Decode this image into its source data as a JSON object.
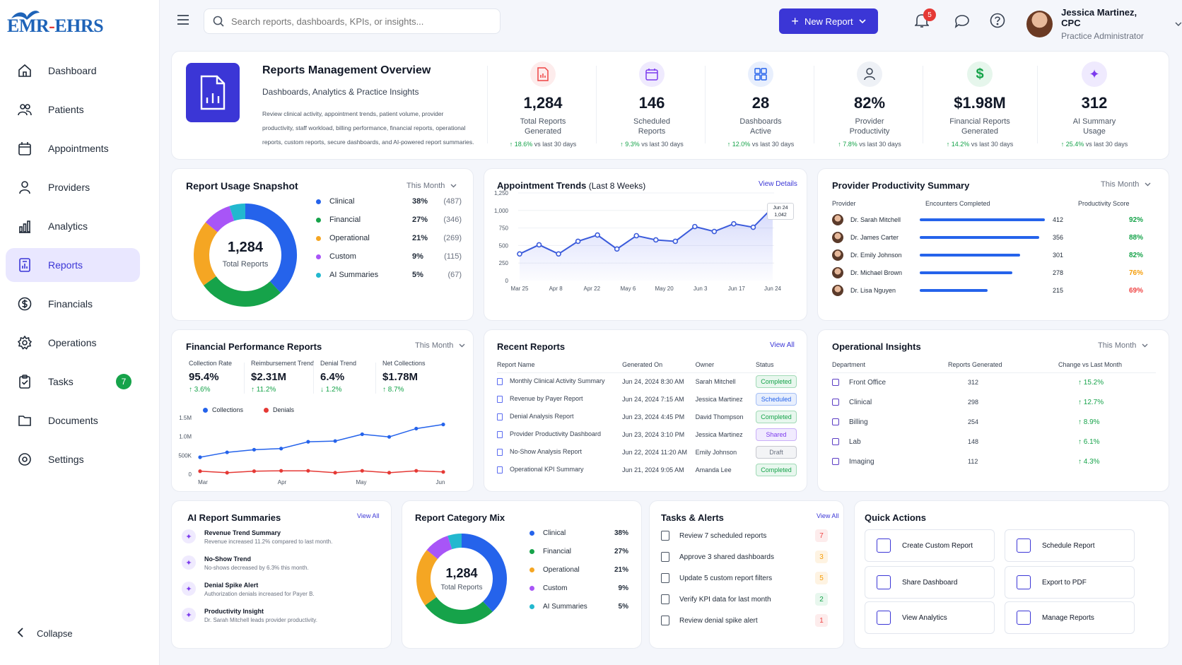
{
  "brand": {
    "name_left": "EMR",
    "name_dash": "-",
    "name_right": "EHRS"
  },
  "sidebar": {
    "items": [
      {
        "label": "Dashboard"
      },
      {
        "label": "Patients"
      },
      {
        "label": "Appointments"
      },
      {
        "label": "Providers"
      },
      {
        "label": "Analytics"
      },
      {
        "label": "Reports"
      },
      {
        "label": "Financials"
      },
      {
        "label": "Operations"
      },
      {
        "label": "Tasks",
        "badge": "7"
      },
      {
        "label": "Documents"
      },
      {
        "label": "Settings"
      }
    ],
    "collapse_label": "Collapse"
  },
  "topbar": {
    "search_placeholder": "Search reports, dashboards, KPIs, or insights...",
    "new_report_label": "New Report",
    "notification_count": "5",
    "user_name": "Jessica Martinez, CPC",
    "user_role": "Practice Administrator"
  },
  "overview": {
    "title": "Reports Management Overview",
    "subtitle": "Dashboards, Analytics & Practice Insights",
    "desc_lines": [
      "Review clinical activity, appointment trends, patient volume, provider",
      "productivity, staff workload, billing performance, financial reports, operational",
      "reports, custom reports, secure dashboards, and AI-powered report summaries."
    ],
    "kpis": [
      {
        "value": "1,284",
        "label": "Total Reports\nGenerated",
        "change": "↑ 18.6%",
        "suffix": " vs last 30 days",
        "color": "#ef4444",
        "bg": "#fdecec"
      },
      {
        "value": "146",
        "label": "Scheduled\nReports",
        "change": "↑ 9.3%",
        "suffix": " vs last 30 days",
        "color": "#7c3aed",
        "bg": "#efeafe"
      },
      {
        "value": "28",
        "label": "Dashboards\nActive",
        "change": "↑ 12.0%",
        "suffix": " vs last 30 days",
        "color": "#2563eb",
        "bg": "#e8effd"
      },
      {
        "value": "82%",
        "label": "Provider\nProductivity",
        "change": "↑ 7.8%",
        "suffix": " vs last 30 days",
        "color": "#374151",
        "bg": "#eef1f6"
      },
      {
        "value": "$1.98M",
        "label": "Financial Reports\nGenerated",
        "change": "↑ 14.2%",
        "suffix": " vs last 30 days",
        "color": "#16a34a",
        "bg": "#e6f6ec"
      },
      {
        "value": "312",
        "label": "AI Summary\nUsage",
        "change": "↑ 25.4%",
        "suffix": " vs last 30 days",
        "color": "#7c3aed",
        "bg": "#efeafe"
      }
    ]
  },
  "usage_snapshot": {
    "title": "Report Usage Snapshot",
    "period": "This Month",
    "center_value": "1,284",
    "center_label": "Total Reports",
    "items": [
      {
        "name": "Clinical",
        "pct": "38%",
        "count": "(487)",
        "color": "#2563eb"
      },
      {
        "name": "Financial",
        "pct": "27%",
        "count": "(346)",
        "color": "#16a34a"
      },
      {
        "name": "Operational",
        "pct": "21%",
        "count": "(269)",
        "color": "#f5a623"
      },
      {
        "name": "Custom",
        "pct": "9%",
        "count": "(115)",
        "color": "#a855f7"
      },
      {
        "name": "AI Summaries",
        "pct": "5%",
        "count": "(67)",
        "color": "#22b8cf"
      }
    ]
  },
  "appointment_trends": {
    "title": "Appointment Trends",
    "title_suffix": " (Last 8 Weeks)",
    "view_label": "View Details",
    "tooltip_date": "Jun 24",
    "tooltip_value": "1,042",
    "y_ticks": [
      "1,250",
      "1,000",
      "750",
      "500",
      "250",
      "0"
    ],
    "x_ticks": [
      "Mar 25",
      "Apr 8",
      "Apr 22",
      "May 6",
      "May 20",
      "Jun 3",
      "Jun 17",
      "Jun 24"
    ]
  },
  "provider_productivity": {
    "title": "Provider Productivity Summary",
    "period": "This Month",
    "headers": [
      "Provider",
      "Encounters Completed",
      "Productivity Score"
    ],
    "rows": [
      {
        "name": "Dr. Sarah Mitchell",
        "encounters": "412",
        "score": "92%",
        "fill": 0.92,
        "score_color": "#16a34a"
      },
      {
        "name": "Dr. James Carter",
        "encounters": "356",
        "score": "88%",
        "fill": 0.88,
        "score_color": "#16a34a"
      },
      {
        "name": "Dr. Emily Johnson",
        "encounters": "301",
        "score": "82%",
        "fill": 0.74,
        "score_color": "#16a34a"
      },
      {
        "name": "Dr. Michael Brown",
        "encounters": "278",
        "score": "76%",
        "fill": 0.68,
        "score_color": "#f59e0b"
      },
      {
        "name": "Dr. Lisa Nguyen",
        "encounters": "215",
        "score": "69%",
        "fill": 0.5,
        "score_color": "#ef4444"
      }
    ]
  },
  "financial_performance": {
    "title": "Financial Performance Reports",
    "period": "This Month",
    "metrics": [
      {
        "label": "Collection Rate",
        "value": "95.4%",
        "change": "↑ 3.6%",
        "color": "#16a34a"
      },
      {
        "label": "Reimbursement Trend",
        "value": "$2.31M",
        "change": "↑ 11.2%",
        "color": "#16a34a"
      },
      {
        "label": "Denial Trend",
        "value": "6.4%",
        "change": "↓ 1.2%",
        "color": "#16a34a"
      },
      {
        "label": "Net Collections",
        "value": "$1.78M",
        "change": "↑ 8.7%",
        "color": "#16a34a"
      }
    ],
    "legend": [
      {
        "name": "Collections",
        "color": "#2563eb"
      },
      {
        "name": "Denials",
        "color": "#e53935"
      }
    ],
    "y_ticks": [
      "1.5M",
      "1.0M",
      "500K",
      "0"
    ],
    "x_ticks": [
      "Mar",
      "Apr",
      "May",
      "Jun"
    ]
  },
  "recent_reports": {
    "title": "Recent Reports",
    "view_label": "View All",
    "headers": [
      "Report Name",
      "Generated On",
      "Owner",
      "Status"
    ],
    "rows": [
      {
        "name": "Monthly Clinical Activity Summary",
        "date": "Jun 24, 2024 8:30 AM",
        "owner": "Sarah Mitchell",
        "status": "Completed",
        "sc": "#16a34a",
        "sb": "#e8f7ee"
      },
      {
        "name": "Revenue by Payer Report",
        "date": "Jun 24, 2024 7:15 AM",
        "owner": "Jessica Martinez",
        "status": "Scheduled",
        "sc": "#2563eb",
        "sb": "#e8effd"
      },
      {
        "name": "Denial Analysis Report",
        "date": "Jun 23, 2024 4:45 PM",
        "owner": "David Thompson",
        "status": "Completed",
        "sc": "#16a34a",
        "sb": "#e8f7ee"
      },
      {
        "name": "Provider Productivity Dashboard",
        "date": "Jun 23, 2024 3:10 PM",
        "owner": "Jessica Martinez",
        "status": "Shared",
        "sc": "#7c3aed",
        "sb": "#f1ebfe"
      },
      {
        "name": "No-Show Analysis Report",
        "date": "Jun 22, 2024 11:20 AM",
        "owner": "Emily Johnson",
        "status": "Draft",
        "sc": "#6b7280",
        "sb": "#f3f4f6"
      },
      {
        "name": "Operational KPI Summary",
        "date": "Jun 21, 2024 9:05 AM",
        "owner": "Amanda Lee",
        "status": "Completed",
        "sc": "#16a34a",
        "sb": "#e8f7ee"
      }
    ]
  },
  "operational_insights": {
    "title": "Operational Insights",
    "period": "This Month",
    "headers": [
      "Department",
      "Reports Generated",
      "Change vs Last Month"
    ],
    "rows": [
      {
        "dept": "Front Office",
        "reports": "312",
        "change": "↑ 15.2%"
      },
      {
        "dept": "Clinical",
        "reports": "298",
        "change": "↑ 12.7%"
      },
      {
        "dept": "Billing",
        "reports": "254",
        "change": "↑ 8.9%"
      },
      {
        "dept": "Lab",
        "reports": "148",
        "change": "↑ 6.1%"
      },
      {
        "dept": "Imaging",
        "reports": "112",
        "change": "↑ 4.3%"
      }
    ]
  },
  "ai_summaries": {
    "title": "AI Report Summaries",
    "view_label": "View All",
    "items": [
      {
        "title": "Revenue Trend Summary",
        "desc": "Revenue increased 11.2% compared to last month."
      },
      {
        "title": "No-Show Trend",
        "desc": "No-shows decreased by 6.3% this month."
      },
      {
        "title": "Denial Spike Alert",
        "desc": "Authorization denials increased for Payer B."
      },
      {
        "title": "Productivity Insight",
        "desc": "Dr. Sarah Mitchell leads provider productivity."
      }
    ]
  },
  "category_mix": {
    "title": "Report Category Mix",
    "center_value": "1,284",
    "center_label": "Total Reports",
    "items": [
      {
        "name": "Clinical",
        "pct": "38%",
        "color": "#2563eb"
      },
      {
        "name": "Financial",
        "pct": "27%",
        "color": "#16a34a"
      },
      {
        "name": "Operational",
        "pct": "21%",
        "color": "#f5a623"
      },
      {
        "name": "Custom",
        "pct": "9%",
        "color": "#a855f7"
      },
      {
        "name": "AI Summaries",
        "pct": "5%",
        "color": "#22b8cf"
      }
    ]
  },
  "tasks": {
    "title": "Tasks & Alerts",
    "view_label": "View All",
    "items": [
      {
        "label": "Review 7 scheduled reports",
        "count": "7",
        "color": "#ef4444",
        "bg": "#fdecec"
      },
      {
        "label": "Approve 3 shared dashboards",
        "count": "3",
        "color": "#f59e0b",
        "bg": "#fef3e2"
      },
      {
        "label": "Update 5 custom report filters",
        "count": "5",
        "color": "#f59e0b",
        "bg": "#fef3e2"
      },
      {
        "label": "Verify KPI data for last month",
        "count": "2",
        "color": "#16a34a",
        "bg": "#e8f7ee"
      },
      {
        "label": "Review denial spike alert",
        "count": "1",
        "color": "#ef4444",
        "bg": "#fdecec"
      }
    ]
  },
  "quick_actions": {
    "title": "Quick Actions",
    "items": [
      {
        "label": "Create Custom Report",
        "icon": "file-plus-icon"
      },
      {
        "label": "Schedule Report",
        "icon": "calendar-clock-icon"
      },
      {
        "label": "Share Dashboard",
        "icon": "share-icon"
      },
      {
        "label": "Export to PDF",
        "icon": "pdf-icon"
      },
      {
        "label": "View Analytics",
        "icon": "bar-chart-icon"
      },
      {
        "label": "Manage Reports",
        "icon": "folder-icon"
      }
    ]
  },
  "chart_data": [
    {
      "type": "pie",
      "title": "Report Usage Snapshot",
      "categories": [
        "Clinical",
        "Financial",
        "Operational",
        "Custom",
        "AI Summaries"
      ],
      "values": [
        38,
        27,
        21,
        9,
        5
      ],
      "counts": [
        487,
        346,
        269,
        115,
        67
      ]
    },
    {
      "type": "area",
      "title": "Appointment Trends",
      "x": [
        "Mar 25",
        "Apr 1",
        "Apr 8",
        "Apr 15",
        "Apr 22",
        "Apr 29",
        "May 6",
        "May 13",
        "May 20",
        "May 27",
        "Jun 3",
        "Jun 10",
        "Jun 17",
        "Jun 24"
      ],
      "values": [
        380,
        510,
        380,
        560,
        650,
        450,
        640,
        580,
        560,
        770,
        700,
        810,
        760,
        1042
      ],
      "ylim": [
        0,
        1250
      ]
    },
    {
      "type": "line",
      "title": "Financial Performance Reports",
      "x": [
        "Mar",
        "",
        "",
        "Apr",
        "",
        "",
        "May",
        "",
        "",
        "Jun"
      ],
      "series": [
        {
          "name": "Collections",
          "values": [
            450000,
            580000,
            650000,
            680000,
            860000,
            880000,
            1060000,
            990000,
            1210000,
            1320000
          ]
        },
        {
          "name": "Denials",
          "values": [
            80000,
            40000,
            80000,
            90000,
            90000,
            40000,
            90000,
            40000,
            90000,
            60000
          ]
        }
      ],
      "ylim": [
        0,
        1500000
      ]
    },
    {
      "type": "pie",
      "title": "Report Category Mix",
      "categories": [
        "Clinical",
        "Financial",
        "Operational",
        "Custom",
        "AI Summaries"
      ],
      "values": [
        38,
        27,
        21,
        9,
        5
      ]
    }
  ]
}
